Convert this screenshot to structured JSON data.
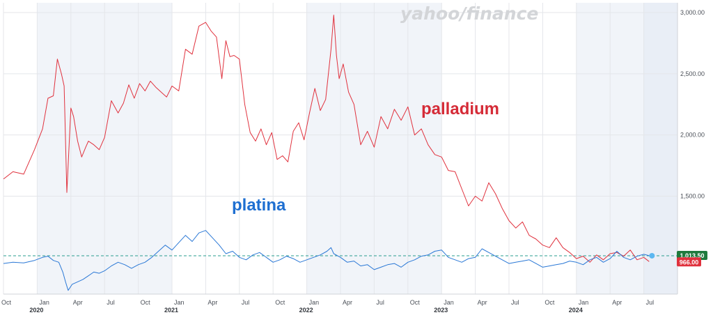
{
  "watermark": "yahoo/finance",
  "chart_data": {
    "type": "line",
    "x_axis": {
      "tick_labels": [
        "Oct",
        "Jan",
        "Apr",
        "Jul",
        "Oct",
        "Jan",
        "Apr",
        "Jul",
        "Oct",
        "Jan",
        "Apr",
        "Jul",
        "Oct",
        "Jan",
        "Apr",
        "Jul",
        "Oct",
        "Jan",
        "Apr",
        "Jul"
      ],
      "year_labels": [
        "2020",
        "2021",
        "2022",
        "2023",
        "2024"
      ],
      "range": [
        "2019-10",
        "2024-08"
      ]
    },
    "y_axis": {
      "tick_labels": [
        "1,500.00",
        "2,000.00",
        "2,500.00",
        "3,000.00"
      ],
      "tick_values": [
        1500,
        2000,
        2500,
        3000
      ],
      "ylim": [
        700,
        3080
      ],
      "position": "right"
    },
    "grid": true,
    "shaded_periods": [
      "2020",
      "2022",
      "2024"
    ],
    "series": [
      {
        "name": "palladium",
        "color": "#e0313d",
        "current_value": 966,
        "current_label": "966.00",
        "x": [
          2019.75,
          2019.82,
          2019.9,
          2019.98,
          2020.04,
          2020.08,
          2020.12,
          2020.15,
          2020.18,
          2020.2,
          2020.22,
          2020.25,
          2020.27,
          2020.3,
          2020.33,
          2020.36,
          2020.38,
          2020.42,
          2020.46,
          2020.5,
          2020.55,
          2020.6,
          2020.64,
          2020.68,
          2020.72,
          2020.76,
          2020.8,
          2020.84,
          2020.88,
          2020.92,
          2020.96,
          2021.0,
          2021.05,
          2021.1,
          2021.15,
          2021.2,
          2021.25,
          2021.29,
          2021.33,
          2021.37,
          2021.4,
          2021.43,
          2021.46,
          2021.5,
          2021.54,
          2021.58,
          2021.62,
          2021.66,
          2021.7,
          2021.74,
          2021.78,
          2021.82,
          2021.86,
          2021.9,
          2021.94,
          2021.98,
          2022.02,
          2022.06,
          2022.1,
          2022.14,
          2022.18,
          2022.2,
          2022.22,
          2022.24,
          2022.27,
          2022.31,
          2022.35,
          2022.4,
          2022.45,
          2022.5,
          2022.55,
          2022.6,
          2022.65,
          2022.7,
          2022.75,
          2022.8,
          2022.85,
          2022.9,
          2022.95,
          2023.0,
          2023.05,
          2023.1,
          2023.15,
          2023.2,
          2023.25,
          2023.3,
          2023.35,
          2023.4,
          2023.45,
          2023.5,
          2023.55,
          2023.6,
          2023.65,
          2023.7,
          2023.75,
          2023.8,
          2023.85,
          2023.9,
          2023.95,
          2024.0,
          2024.05,
          2024.1,
          2024.15,
          2024.2,
          2024.25,
          2024.3,
          2024.35,
          2024.4,
          2024.45,
          2024.5,
          2024.54
        ],
        "values": [
          1640,
          1700,
          1680,
          1880,
          2050,
          2300,
          2320,
          2620,
          2500,
          2400,
          1530,
          2220,
          2150,
          1950,
          1820,
          1900,
          1950,
          1920,
          1880,
          1980,
          2280,
          2180,
          2260,
          2410,
          2300,
          2420,
          2360,
          2440,
          2390,
          2350,
          2310,
          2400,
          2360,
          2700,
          2660,
          2890,
          2920,
          2850,
          2800,
          2460,
          2770,
          2640,
          2650,
          2620,
          2250,
          2020,
          1950,
          2050,
          1920,
          2020,
          1800,
          1830,
          1780,
          2030,
          2100,
          1960,
          2180,
          2380,
          2200,
          2290,
          2700,
          2980,
          2650,
          2460,
          2580,
          2350,
          2250,
          1920,
          2030,
          1900,
          2150,
          2050,
          2210,
          2120,
          2230,
          2000,
          2050,
          1920,
          1840,
          1820,
          1710,
          1700,
          1560,
          1420,
          1500,
          1460,
          1610,
          1520,
          1400,
          1300,
          1240,
          1290,
          1180,
          1150,
          1100,
          1080,
          1160,
          1080,
          1040,
          990,
          1010,
          960,
          1020,
          980,
          1030,
          1040,
          1010,
          1060,
          980,
          1000,
          966
        ]
      },
      {
        "name": "platina",
        "color": "#2a78d6",
        "current_value": 1013.5,
        "current_label": "1,013.50",
        "x": [
          2019.75,
          2019.82,
          2019.9,
          2019.98,
          2020.04,
          2020.08,
          2020.12,
          2020.16,
          2020.19,
          2020.21,
          2020.23,
          2020.26,
          2020.3,
          2020.34,
          2020.38,
          2020.42,
          2020.46,
          2020.5,
          2020.55,
          2020.6,
          2020.65,
          2020.7,
          2020.75,
          2020.8,
          2020.85,
          2020.9,
          2020.95,
          2021.0,
          2021.05,
          2021.1,
          2021.15,
          2021.2,
          2021.25,
          2021.3,
          2021.35,
          2021.4,
          2021.45,
          2021.5,
          2021.55,
          2021.6,
          2021.65,
          2021.7,
          2021.75,
          2021.8,
          2021.85,
          2021.9,
          2021.95,
          2022.0,
          2022.05,
          2022.1,
          2022.15,
          2022.18,
          2022.2,
          2022.25,
          2022.3,
          2022.35,
          2022.4,
          2022.45,
          2022.5,
          2022.55,
          2022.6,
          2022.65,
          2022.7,
          2022.75,
          2022.8,
          2022.85,
          2022.9,
          2022.95,
          2023.0,
          2023.05,
          2023.1,
          2023.15,
          2023.2,
          2023.25,
          2023.3,
          2023.35,
          2023.4,
          2023.45,
          2023.5,
          2023.55,
          2023.6,
          2023.65,
          2023.7,
          2023.75,
          2023.8,
          2023.85,
          2023.9,
          2023.95,
          2024.0,
          2024.05,
          2024.1,
          2024.15,
          2024.2,
          2024.25,
          2024.3,
          2024.35,
          2024.4,
          2024.45,
          2024.5,
          2024.54
        ],
        "values": [
          950,
          960,
          955,
          975,
          1000,
          1010,
          975,
          960,
          880,
          800,
          730,
          780,
          800,
          820,
          850,
          880,
          870,
          890,
          930,
          960,
          940,
          910,
          940,
          960,
          1000,
          1050,
          1100,
          1060,
          1120,
          1180,
          1130,
          1200,
          1220,
          1160,
          1100,
          1030,
          1050,
          1000,
          980,
          1020,
          1040,
          1000,
          960,
          980,
          1010,
          990,
          960,
          980,
          1000,
          1020,
          1050,
          1080,
          1030,
          1000,
          960,
          970,
          930,
          940,
          900,
          920,
          940,
          950,
          920,
          960,
          980,
          1010,
          1020,
          1050,
          1060,
          1000,
          980,
          960,
          990,
          1000,
          1070,
          1040,
          1010,
          980,
          950,
          960,
          970,
          980,
          950,
          920,
          930,
          940,
          950,
          970,
          960,
          940,
          980,
          1000,
          960,
          990,
          1050,
          1000,
          980,
          1010,
          1025,
          1013.5
        ]
      }
    ],
    "reference_line": 1013.5,
    "annotations": [
      {
        "text": "palladium",
        "series": "palladium",
        "color": "#d52b37"
      },
      {
        "text": "platina",
        "series": "platina",
        "color": "#1e6fd1"
      }
    ]
  }
}
